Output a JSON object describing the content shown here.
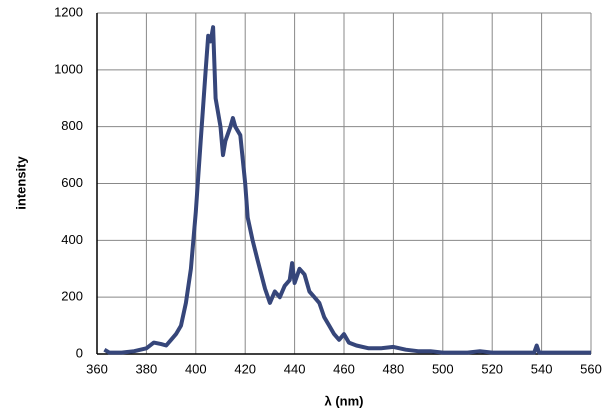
{
  "chart_data": {
    "type": "line",
    "x_label": "λ (nm)",
    "y_label": "intensity",
    "x": [
      363,
      365,
      370,
      375,
      380,
      383,
      386,
      388,
      390,
      392,
      394,
      396,
      398,
      400,
      402,
      404,
      405,
      406,
      407,
      408,
      410,
      411,
      412,
      414,
      415,
      416,
      418,
      420,
      421,
      423,
      425,
      428,
      430,
      432,
      434,
      436,
      438,
      439,
      440,
      442,
      444,
      446,
      448,
      450,
      452,
      454,
      456,
      458,
      460,
      462,
      465,
      470,
      475,
      480,
      485,
      490,
      495,
      500,
      510,
      515,
      520,
      530,
      537,
      538,
      539,
      545,
      550,
      560
    ],
    "series": [
      {
        "color": "#36467a",
        "values": [
          15,
          5,
          5,
          10,
          20,
          40,
          35,
          30,
          50,
          70,
          100,
          180,
          300,
          500,
          750,
          1000,
          1120,
          1100,
          1150,
          900,
          800,
          700,
          750,
          800,
          830,
          800,
          770,
          600,
          480,
          400,
          330,
          230,
          180,
          220,
          200,
          240,
          260,
          320,
          250,
          300,
          280,
          220,
          200,
          180,
          130,
          100,
          70,
          50,
          70,
          40,
          30,
          20,
          20,
          25,
          15,
          10,
          10,
          5,
          5,
          10,
          5,
          5,
          5,
          30,
          5,
          5,
          5,
          5
        ]
      }
    ],
    "xlim": [
      360,
      560
    ],
    "xticks": [
      360,
      380,
      400,
      420,
      440,
      460,
      480,
      500,
      520,
      540,
      560
    ],
    "ylim": [
      0,
      1200
    ],
    "yticks": [
      0,
      200,
      400,
      600,
      800,
      1000,
      1200
    ],
    "grid": true
  }
}
